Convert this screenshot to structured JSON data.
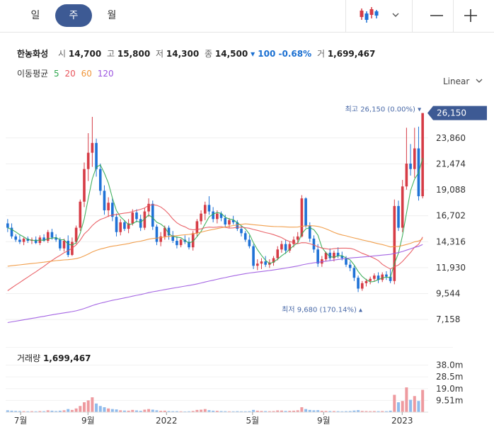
{
  "toolbar": {
    "periods": [
      {
        "label": "일",
        "active": false
      },
      {
        "label": "주",
        "active": true
      },
      {
        "label": "월",
        "active": false
      }
    ],
    "chart_type_icon": "candlestick-icon",
    "dropdown_icon": "chevron-down-icon",
    "zoom_out_icon": "minus-icon",
    "zoom_in_icon": "plus-icon"
  },
  "stock": {
    "name": "한농화성",
    "open_label": "시",
    "open": "14,700",
    "high_label": "고",
    "high": "15,800",
    "low_label": "저",
    "low": "14,300",
    "close_label": "종",
    "close": "14,500",
    "change": "▾ 100 -0.68%",
    "volume_label": "거",
    "volume": "1,699,467"
  },
  "moving_average": {
    "label": "이동평균",
    "periods": [
      {
        "label": "5",
        "color": "#2fa84f"
      },
      {
        "label": "20",
        "color": "#e8535a"
      },
      {
        "label": "60",
        "color": "#f0953a"
      },
      {
        "label": "120",
        "color": "#9b55e0"
      }
    ]
  },
  "scale_mode": "Linear",
  "colors": {
    "up": "#d63c46",
    "down": "#1f72d6",
    "current_badge": "#3d5a94",
    "vol_up": "#ee9a9f",
    "vol_down": "#8fbbec",
    "marker": "#4a6aa8"
  },
  "annotations": {
    "high": "최고 26,150 (0.00%) ▾",
    "low": "최저 9,680 (170.14%) ▴",
    "current": "26,150"
  },
  "chart_data": {
    "type": "candlestick",
    "interval": "weekly",
    "y_ticks": [
      "23,860",
      "21,474",
      "19,088",
      "16,702",
      "14,316",
      "11,930",
      "9,544",
      "7,158"
    ],
    "x_ticks": [
      "7월",
      "9월",
      "2022",
      "5월",
      "9월",
      "2023"
    ],
    "y_range": [
      5800,
      27300
    ],
    "volume_ticks": [
      "38.0m",
      "28.5m",
      "19.0m",
      "9.51m"
    ],
    "volume_range": [
      0,
      48000000
    ],
    "volume_label": "거래량",
    "volume_value": "1,699,467",
    "candles": [
      [
        16000,
        16400,
        15200,
        15600,
        1.5
      ],
      [
        15600,
        16000,
        14600,
        14800,
        1.2
      ],
      [
        14800,
        15000,
        14300,
        14500,
        1.0
      ],
      [
        14500,
        14900,
        14100,
        14300,
        0.9
      ],
      [
        14300,
        14700,
        14000,
        14600,
        0.8
      ],
      [
        14600,
        14800,
        14200,
        14400,
        0.7
      ],
      [
        14400,
        14700,
        14100,
        14500,
        0.8
      ],
      [
        14500,
        14800,
        14100,
        14200,
        0.7
      ],
      [
        14200,
        14900,
        14000,
        14700,
        0.9
      ],
      [
        14700,
        15000,
        14300,
        14400,
        0.8
      ],
      [
        14400,
        15400,
        14200,
        15200,
        1.5
      ],
      [
        15200,
        15500,
        14500,
        14700,
        1.2
      ],
      [
        14700,
        15000,
        14300,
        14500,
        0.9
      ],
      [
        14500,
        14700,
        13500,
        13700,
        1.2
      ],
      [
        13700,
        14600,
        13400,
        14400,
        1.5
      ],
      [
        14400,
        14900,
        12900,
        13100,
        2.5
      ],
      [
        13100,
        14700,
        13000,
        14300,
        1.8
      ],
      [
        14300,
        15800,
        14100,
        15600,
        3.0
      ],
      [
        15600,
        18200,
        15300,
        18000,
        5.0
      ],
      [
        18000,
        21600,
        17500,
        21000,
        8.0
      ],
      [
        21000,
        24300,
        19900,
        22500,
        9.5
      ],
      [
        22500,
        25800,
        21200,
        23400,
        12.0
      ],
      [
        23400,
        23800,
        20300,
        21000,
        7.0
      ],
      [
        21000,
        21500,
        18600,
        19000,
        5.0
      ],
      [
        19000,
        19500,
        16800,
        17200,
        4.0
      ],
      [
        17200,
        18400,
        16600,
        17900,
        3.0
      ],
      [
        17900,
        18300,
        16200,
        16600,
        2.5
      ],
      [
        16600,
        16900,
        14800,
        15200,
        2.2
      ],
      [
        15200,
        16400,
        14900,
        16100,
        1.5
      ],
      [
        16100,
        16300,
        15300,
        15500,
        1.3
      ],
      [
        15500,
        16400,
        15100,
        16000,
        1.2
      ],
      [
        16000,
        17300,
        15800,
        17000,
        1.8
      ],
      [
        17000,
        17300,
        16100,
        16400,
        1.4
      ],
      [
        16400,
        16800,
        15300,
        15600,
        1.1
      ],
      [
        15600,
        17400,
        15400,
        17100,
        2.0
      ],
      [
        17100,
        18300,
        16600,
        17800,
        2.5
      ],
      [
        17800,
        18100,
        15400,
        15700,
        2.0
      ],
      [
        15700,
        15900,
        14000,
        14300,
        1.5
      ],
      [
        14300,
        15200,
        13900,
        14800,
        1.1
      ],
      [
        14800,
        15800,
        14500,
        15600,
        1.2
      ],
      [
        15600,
        15800,
        14500,
        14900,
        0.9
      ],
      [
        14900,
        15300,
        14200,
        14400,
        0.8
      ],
      [
        14400,
        14800,
        13700,
        14000,
        0.8
      ],
      [
        14000,
        14600,
        13800,
        14500,
        0.7
      ],
      [
        14500,
        14900,
        14100,
        14300,
        0.6
      ],
      [
        14300,
        14700,
        13600,
        13800,
        0.7
      ],
      [
        13800,
        15300,
        13500,
        15100,
        1.0
      ],
      [
        15100,
        16400,
        14800,
        16200,
        1.8
      ],
      [
        16200,
        17200,
        15900,
        16900,
        2.0
      ],
      [
        16900,
        18000,
        16300,
        17700,
        2.5
      ],
      [
        17700,
        18500,
        16800,
        17100,
        1.6
      ],
      [
        17100,
        17500,
        16100,
        16400,
        1.2
      ],
      [
        16400,
        17200,
        16000,
        16900,
        1.1
      ],
      [
        16900,
        17100,
        16200,
        16500,
        0.9
      ],
      [
        16500,
        16800,
        15600,
        15900,
        0.8
      ],
      [
        15900,
        16500,
        15600,
        16300,
        0.7
      ],
      [
        16300,
        16700,
        15900,
        16100,
        0.7
      ],
      [
        16100,
        16300,
        15300,
        15500,
        0.8
      ],
      [
        15500,
        15800,
        14800,
        15100,
        0.7
      ],
      [
        15100,
        15300,
        14300,
        14500,
        0.7
      ],
      [
        14500,
        14900,
        13700,
        13900,
        0.8
      ],
      [
        13900,
        14100,
        11800,
        12100,
        1.8
      ],
      [
        12100,
        12700,
        11700,
        12300,
        1.2
      ],
      [
        12300,
        12800,
        11800,
        12500,
        1.0
      ],
      [
        12500,
        13000,
        12000,
        12200,
        0.9
      ],
      [
        12200,
        12700,
        11900,
        12400,
        0.8
      ],
      [
        12400,
        13000,
        12100,
        12800,
        0.9
      ],
      [
        12800,
        13900,
        12600,
        13600,
        1.4
      ],
      [
        13600,
        14400,
        13300,
        14100,
        1.3
      ],
      [
        14100,
        14500,
        13200,
        13500,
        1.0
      ],
      [
        13500,
        14300,
        13300,
        14100,
        1.1
      ],
      [
        14100,
        14800,
        13800,
        14500,
        1.2
      ],
      [
        14500,
        15200,
        14100,
        14800,
        1.5
      ],
      [
        14800,
        18600,
        14700,
        18300,
        4.0
      ],
      [
        18300,
        18400,
        15600,
        15800,
        2.5
      ],
      [
        15800,
        16100,
        14300,
        14600,
        1.8
      ],
      [
        14600,
        14900,
        13300,
        13600,
        1.5
      ],
      [
        13600,
        14100,
        12000,
        12300,
        1.6
      ],
      [
        12300,
        13000,
        12000,
        12700,
        1.1
      ],
      [
        12700,
        13400,
        12500,
        13300,
        1.0
      ],
      [
        13300,
        13700,
        12600,
        12800,
        0.9
      ],
      [
        12800,
        13500,
        12500,
        13300,
        0.9
      ],
      [
        13300,
        13800,
        12800,
        13000,
        0.8
      ],
      [
        13000,
        13400,
        12600,
        12800,
        0.7
      ],
      [
        12800,
        13000,
        12000,
        12200,
        0.8
      ],
      [
        12200,
        12500,
        11600,
        11900,
        0.9
      ],
      [
        11900,
        12100,
        10700,
        11000,
        1.3
      ],
      [
        11000,
        11200,
        9680,
        10000,
        1.6
      ],
      [
        10000,
        10700,
        9800,
        10500,
        1.0
      ],
      [
        10500,
        10900,
        10200,
        10700,
        0.9
      ],
      [
        10700,
        11100,
        10400,
        10900,
        0.8
      ],
      [
        10900,
        11400,
        10700,
        11200,
        0.9
      ],
      [
        11200,
        11500,
        10500,
        10800,
        0.8
      ],
      [
        10800,
        11500,
        10600,
        11300,
        0.9
      ],
      [
        11300,
        11600,
        10800,
        11100,
        0.8
      ],
      [
        11100,
        11800,
        10500,
        10700,
        1.2
      ],
      [
        10700,
        18200,
        10400,
        17600,
        14.0
      ],
      [
        17600,
        18100,
        15300,
        15600,
        8.0
      ],
      [
        15600,
        20000,
        15200,
        19400,
        9.0
      ],
      [
        19400,
        24800,
        19100,
        21500,
        20.0
      ],
      [
        21500,
        23300,
        20400,
        21000,
        10.0
      ],
      [
        21000,
        24800,
        20200,
        22900,
        13.0
      ],
      [
        22900,
        24900,
        18100,
        18500,
        9.0
      ],
      [
        18500,
        26150,
        18300,
        26150,
        18.0
      ]
    ]
  }
}
